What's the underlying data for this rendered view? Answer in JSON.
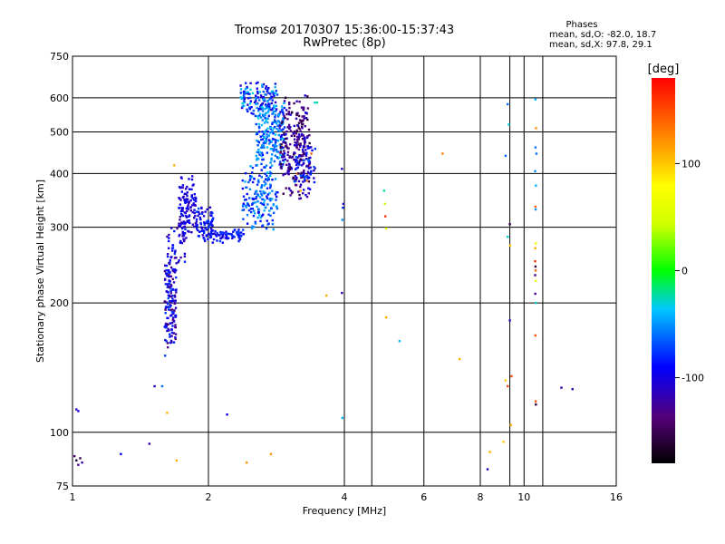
{
  "header": {
    "title_line1": "Tromsø 20170307 15:36:00-15:37:43",
    "title_line2": "RwPretec (8p)",
    "phases_title": "Phases",
    "phases_o": "mean, sd,O: -82.0, 18.7",
    "phases_x": "mean, sd,X:  97.8, 29.1"
  },
  "colorbar": {
    "unit_label": "[deg]",
    "range": [
      -180,
      180
    ],
    "ticks": [
      {
        "value": 100,
        "label": "100"
      },
      {
        "value": 0,
        "label": "0"
      },
      {
        "value": -100,
        "label": "-100"
      }
    ]
  },
  "chart_data": {
    "type": "scatter",
    "title": "Tromsø 20170307 15:36:00-15:37:43",
    "subtitle": "RwPretec (8p)",
    "xlabel": "Frequency [MHz]",
    "ylabel": "Stationary phase Virtual Height [km]",
    "xscale": "log",
    "yscale": "log",
    "xlim": [
      1,
      16
    ],
    "ylim": [
      75,
      750
    ],
    "grid": true,
    "legend": "colorbar-right",
    "x_ticks": [
      {
        "value": 1,
        "label": "1"
      },
      {
        "value": 2,
        "label": "2"
      },
      {
        "value": 4,
        "label": "4"
      },
      {
        "value": 6,
        "label": "6"
      },
      {
        "value": 8,
        "label": "8"
      },
      {
        "value": 10,
        "label": "10"
      },
      {
        "value": 16,
        "label": "16"
      }
    ],
    "y_ticks": [
      {
        "value": 75,
        "label": "75"
      },
      {
        "value": 100,
        "label": "100"
      },
      {
        "value": 200,
        "label": "200"
      },
      {
        "value": 300,
        "label": "300"
      },
      {
        "value": 400,
        "label": "400"
      },
      {
        "value": 500,
        "label": "500"
      },
      {
        "value": 600,
        "label": "600"
      },
      {
        "value": 750,
        "label": "750"
      }
    ],
    "grid_x": [
      1,
      2,
      4,
      6,
      8,
      10,
      16
    ],
    "grid_y": [
      75,
      100,
      200,
      300,
      400,
      500,
      600,
      750
    ],
    "extra_grid_x": [
      4.6,
      9.3,
      11.0
    ],
    "points": [
      [
        1.01,
        88,
        -140
      ],
      [
        1.02,
        86,
        -160
      ],
      [
        1.04,
        87,
        -150
      ],
      [
        1.05,
        85,
        -120
      ],
      [
        1.03,
        84,
        -130
      ],
      [
        1.02,
        113,
        -110
      ],
      [
        1.03,
        112,
        -100
      ],
      [
        1.28,
        89,
        -90
      ],
      [
        1.48,
        94,
        -120
      ],
      [
        1.52,
        128,
        -110
      ],
      [
        1.58,
        128,
        -60
      ],
      [
        1.62,
        111,
        110
      ],
      [
        1.7,
        86,
        110
      ],
      [
        1.68,
        418,
        110
      ],
      [
        2.2,
        110,
        -100
      ],
      [
        2.43,
        85,
        120
      ],
      [
        2.75,
        89,
        120
      ],
      [
        3.95,
        410,
        -110
      ],
      [
        3.98,
        340,
        -110
      ],
      [
        3.97,
        333,
        -80
      ],
      [
        3.96,
        312,
        -50
      ],
      [
        3.95,
        211,
        -120
      ],
      [
        3.96,
        108,
        -40
      ],
      [
        3.65,
        208,
        110
      ],
      [
        4.9,
        365,
        -20
      ],
      [
        4.92,
        340,
        40
      ],
      [
        4.93,
        318,
        160
      ],
      [
        4.95,
        298,
        60
      ],
      [
        4.95,
        185,
        110
      ],
      [
        5.3,
        163,
        -40
      ],
      [
        6.6,
        445,
        130
      ],
      [
        7.2,
        148,
        110
      ],
      [
        8.3,
        82,
        -110
      ],
      [
        8.4,
        90,
        110
      ],
      [
        9.0,
        95,
        100
      ],
      [
        9.1,
        440,
        -60
      ],
      [
        9.2,
        580,
        -60
      ],
      [
        9.25,
        520,
        -30
      ],
      [
        9.3,
        305,
        -150
      ],
      [
        9.2,
        285,
        -30
      ],
      [
        9.32,
        272,
        100
      ],
      [
        9.3,
        182,
        -110
      ],
      [
        9.35,
        104,
        110
      ],
      [
        9.38,
        135,
        150
      ],
      [
        9.2,
        128,
        150
      ],
      [
        9.1,
        132,
        100
      ],
      [
        10.6,
        595,
        -40
      ],
      [
        10.63,
        510,
        120
      ],
      [
        10.6,
        460,
        -60
      ],
      [
        10.65,
        445,
        -60
      ],
      [
        10.58,
        405,
        -50
      ],
      [
        10.62,
        375,
        -40
      ],
      [
        10.6,
        335,
        140
      ],
      [
        10.61,
        330,
        -50
      ],
      [
        10.62,
        275,
        70
      ],
      [
        10.59,
        268,
        110
      ],
      [
        10.58,
        250,
        160
      ],
      [
        10.6,
        243,
        -160
      ],
      [
        10.61,
        238,
        140
      ],
      [
        10.58,
        232,
        -130
      ],
      [
        10.62,
        225,
        60
      ],
      [
        10.59,
        210,
        -130
      ],
      [
        10.62,
        200,
        -30
      ],
      [
        10.6,
        168,
        150
      ],
      [
        10.61,
        118,
        150
      ],
      [
        10.62,
        116,
        -160
      ],
      [
        12.1,
        127,
        -120
      ],
      [
        12.8,
        126,
        -120
      ],
      [
        3.48,
        585,
        -20
      ],
      [
        3.44,
        585,
        -30
      ],
      [
        3.38,
        445,
        140
      ],
      [
        3.35,
        420,
        150
      ],
      [
        3.3,
        385,
        120
      ],
      [
        3.2,
        365,
        110
      ],
      [
        3.15,
        400,
        130
      ]
    ],
    "clusters": [
      {
        "xr": [
          1.6,
          1.7
        ],
        "yr": [
          150,
          270
        ],
        "n": 150,
        "ph": [
          -70,
          -140
        ]
      },
      {
        "xr": [
          1.62,
          1.78
        ],
        "yr": [
          230,
          330
        ],
        "n": 50,
        "ph": [
          -75,
          -125
        ]
      },
      {
        "xr": [
          1.72,
          1.88
        ],
        "yr": [
          280,
          400
        ],
        "n": 110,
        "ph": [
          -85,
          -120
        ]
      },
      {
        "xr": [
          1.88,
          2.05
        ],
        "yr": [
          275,
          340
        ],
        "n": 70,
        "ph": [
          -70,
          -110
        ]
      },
      {
        "xr": [
          2.0,
          2.4
        ],
        "yr": [
          275,
          300
        ],
        "n": 70,
        "ph": [
          -70,
          -110
        ]
      },
      {
        "xr": [
          2.38,
          2.85
        ],
        "yr": [
          290,
          420
        ],
        "n": 160,
        "ph": [
          -40,
          -95
        ]
      },
      {
        "xr": [
          2.55,
          2.95
        ],
        "yr": [
          400,
          620
        ],
        "n": 220,
        "ph": [
          -30,
          -90
        ]
      },
      {
        "xr": [
          2.35,
          2.85
        ],
        "yr": [
          540,
          660
        ],
        "n": 130,
        "ph": [
          -30,
          -110
        ]
      },
      {
        "xr": [
          2.88,
          3.35
        ],
        "yr": [
          340,
          620
        ],
        "n": 260,
        "ph": [
          -100,
          -160
        ]
      },
      {
        "xr": [
          3.1,
          3.45
        ],
        "yr": [
          360,
          480
        ],
        "n": 60,
        "ph": [
          -60,
          -120
        ]
      }
    ]
  }
}
